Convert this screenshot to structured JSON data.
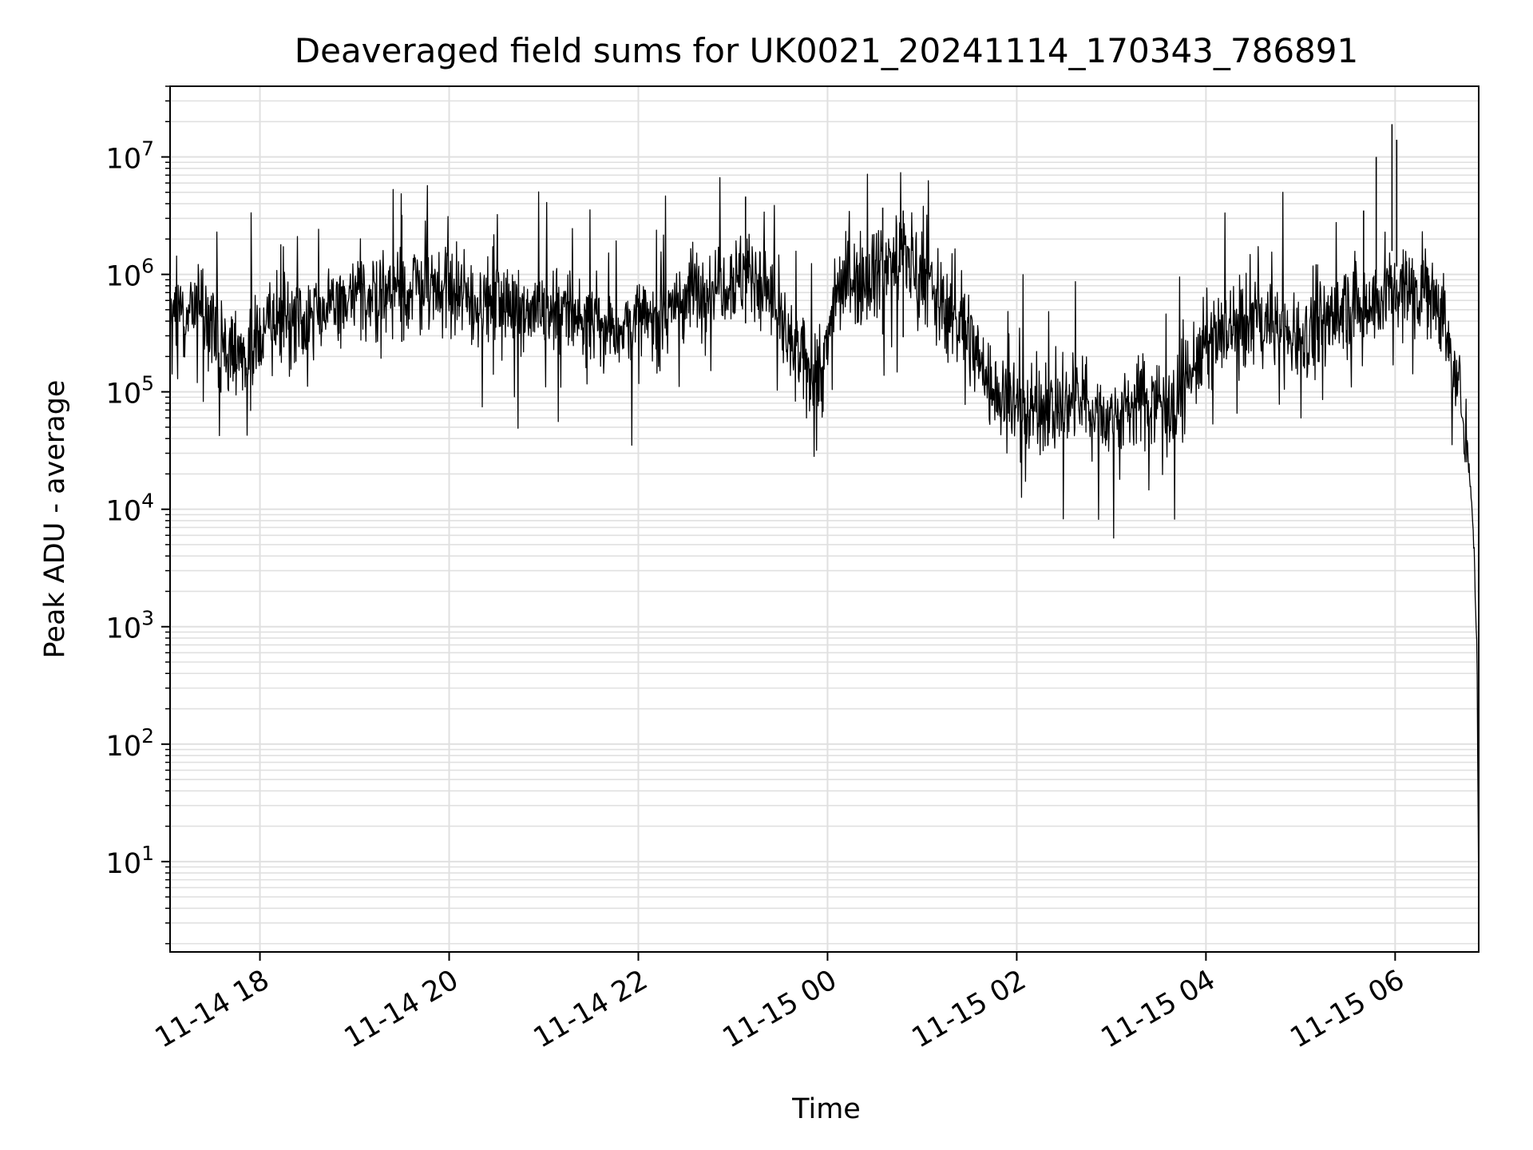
{
  "chart_data": {
    "type": "line",
    "title": "Deaveraged field sums for UK0021_20241114_170343_786891",
    "xlabel": "Time",
    "ylabel": "Peak ADU - average",
    "yscale": "log",
    "ylim": [
      1.7,
      40000000
    ],
    "xlim": [
      "2024-11-14 17:03",
      "2024-11-15 06:53"
    ],
    "grid": true,
    "grid_color": "#e0e0e0",
    "line_color": "#000000",
    "xticks": [
      {
        "value": "2024-11-14 18:00",
        "label": "11-14 18"
      },
      {
        "value": "2024-11-14 20:00",
        "label": "11-14 20"
      },
      {
        "value": "2024-11-14 22:00",
        "label": "11-14 22"
      },
      {
        "value": "2024-11-15 00:00",
        "label": "11-15 00"
      },
      {
        "value": "2024-11-15 02:00",
        "label": "11-15 02"
      },
      {
        "value": "2024-11-15 04:00",
        "label": "11-15 04"
      },
      {
        "value": "2024-11-15 06:00",
        "label": "11-15 06"
      }
    ],
    "yticks": [
      {
        "value": 10,
        "base": "10",
        "exp": "1"
      },
      {
        "value": 100,
        "base": "10",
        "exp": "2"
      },
      {
        "value": 1000,
        "base": "10",
        "exp": "3"
      },
      {
        "value": 10000,
        "base": "10",
        "exp": "4"
      },
      {
        "value": 100000,
        "base": "10",
        "exp": "5"
      },
      {
        "value": 1000000,
        "base": "10",
        "exp": "6"
      },
      {
        "value": 10000000,
        "base": "10",
        "exp": "7"
      }
    ],
    "series": [
      {
        "style": "noisy envelope",
        "x": [
          "2024-11-14 17:03",
          "2024-11-14 17:20",
          "2024-11-14 17:35",
          "2024-11-14 17:50",
          "2024-11-14 18:10",
          "2024-11-14 18:40",
          "2024-11-14 19:10",
          "2024-11-14 19:40",
          "2024-11-14 20:10",
          "2024-11-14 20:40",
          "2024-11-14 21:10",
          "2024-11-14 21:40",
          "2024-11-14 22:10",
          "2024-11-14 22:25",
          "2024-11-14 22:50",
          "2024-11-14 23:15",
          "2024-11-14 23:25",
          "2024-11-14 23:40",
          "2024-11-14 23:58",
          "2024-11-15 00:05",
          "2024-11-15 00:30",
          "2024-11-15 00:50",
          "2024-11-15 01:10",
          "2024-11-15 01:30",
          "2024-11-15 01:45",
          "2024-11-15 02:10",
          "2024-11-15 02:40",
          "2024-11-15 03:00",
          "2024-11-15 03:20",
          "2024-11-15 03:40",
          "2024-11-15 04:00",
          "2024-11-15 04:30",
          "2024-11-15 05:00",
          "2024-11-15 05:30",
          "2024-11-15 05:55",
          "2024-11-15 06:20",
          "2024-11-15 06:30",
          "2024-11-15 06:38",
          "2024-11-15 06:43",
          "2024-11-15 06:48",
          "2024-11-15 06:50",
          "2024-11-15 06:52",
          "2024-11-15 06:53"
        ],
        "y": [
          400000,
          550000,
          280000,
          200000,
          400000,
          500000,
          700000,
          750000,
          600000,
          550000,
          500000,
          350000,
          400000,
          600000,
          900000,
          1000000,
          600000,
          180000,
          160000,
          800000,
          1100000,
          1500000,
          600000,
          300000,
          100000,
          70000,
          80000,
          60000,
          90000,
          80000,
          250000,
          400000,
          300000,
          500000,
          700000,
          800000,
          500000,
          120000,
          80000,
          15000,
          5000,
          500,
          4
        ]
      }
    ],
    "spikes": [
      {
        "x": "2024-11-15 05:58",
        "y": 19000000
      },
      {
        "x": "2024-11-15 06:01",
        "y": 14000000
      },
      {
        "x": "2024-11-15 05:48",
        "y": 10000000
      },
      {
        "x": "2024-11-14 23:08",
        "y": 4600000
      },
      {
        "x": "2024-11-15 00:35",
        "y": 3700000
      },
      {
        "x": "2024-11-15 00:48",
        "y": 3500000
      },
      {
        "x": "2024-11-14 19:30",
        "y": 3200000
      },
      {
        "x": "2024-11-15 05:40",
        "y": 3500000
      }
    ]
  }
}
